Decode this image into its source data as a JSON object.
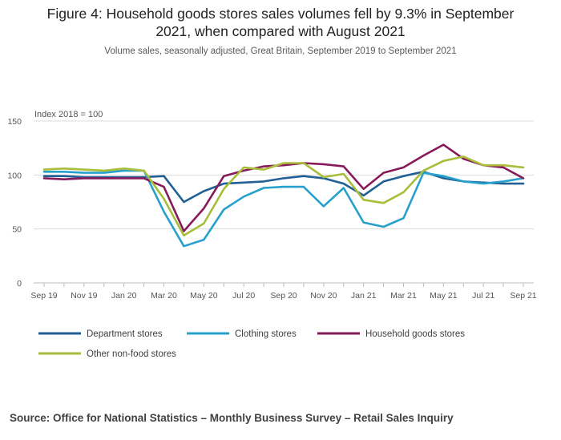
{
  "chart_data": {
    "type": "line",
    "title": "Figure 4: Household goods stores sales volumes fell by 9.3% in September 2021, when compared with August 2021",
    "title_line1": "Figure 4: Household goods stores sales volumes fell by 9.3% in September",
    "title_line2": "2021, when compared with August 2021",
    "subtitle": "Volume sales, seasonally adjusted, Great Britain, September 2019 to September 2021",
    "ylabel": "Index 2018 = 100",
    "ylim": [
      0,
      150
    ],
    "yticks": [
      0,
      50,
      100,
      150
    ],
    "grid": true,
    "legend_position": "bottom",
    "x": [
      "Sep 19",
      "Oct 19",
      "Nov 19",
      "Dec 19",
      "Jan 20",
      "Feb 20",
      "Mar 20",
      "Apr 20",
      "May 20",
      "Jun 20",
      "Jul 20",
      "Aug 20",
      "Sep 20",
      "Oct 20",
      "Nov 20",
      "Dec 20",
      "Jan 21",
      "Feb 21",
      "Mar 21",
      "Apr 21",
      "May 21",
      "Jun 21",
      "Jul 21",
      "Aug 21",
      "Sep 21"
    ],
    "xtick_labels": [
      "Sep 19",
      "Nov 19",
      "Jan 20",
      "Mar 20",
      "May 20",
      "Jul 20",
      "Sep 20",
      "Nov 20",
      "Jan 21",
      "Mar 21",
      "May 21",
      "Jul 21",
      "Sep 21"
    ],
    "series": [
      {
        "name": "Department stores",
        "color": "#206095",
        "values": [
          99,
          99,
          98,
          98,
          98,
          98,
          99,
          75,
          85,
          92,
          93,
          94,
          97,
          99,
          97,
          92,
          81,
          94,
          99,
          103,
          97,
          94,
          93,
          92,
          92
        ]
      },
      {
        "name": "Clothing stores",
        "color": "#27a0cc",
        "values": [
          103,
          103,
          102,
          102,
          104,
          104,
          66,
          34,
          40,
          68,
          80,
          88,
          89,
          89,
          71,
          88,
          56,
          52,
          60,
          102,
          99,
          94,
          92,
          94,
          97
        ]
      },
      {
        "name": "Household goods stores",
        "color": "#871a5b",
        "values": [
          97,
          96,
          97,
          97,
          97,
          97,
          89,
          48,
          69,
          99,
          104,
          108,
          109,
          111,
          110,
          108,
          87,
          102,
          107,
          118,
          128,
          115,
          109,
          107,
          97
        ]
      },
      {
        "name": "Other non-food stores",
        "color": "#a8bd3a",
        "values": [
          105,
          106,
          105,
          104,
          106,
          104,
          78,
          44,
          55,
          87,
          107,
          105,
          111,
          111,
          98,
          101,
          77,
          74,
          84,
          104,
          113,
          117,
          109,
          109,
          107
        ]
      }
    ]
  },
  "source": "Source: Office for National Statistics – Monthly Business Survey – Retail Sales Inquiry"
}
